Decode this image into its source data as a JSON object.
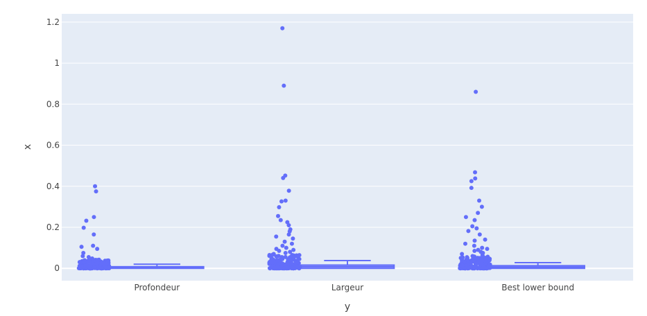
{
  "chart_data": {
    "type": "box",
    "categories": [
      "Profondeur",
      "Largeur",
      "Best lower bound"
    ],
    "xlabel": "y",
    "ylabel": "x",
    "ylim": [
      -0.06,
      1.24
    ],
    "yticks": [
      0,
      0.2,
      0.4,
      0.6,
      0.8,
      1,
      1.2
    ],
    "ytick_labels": [
      "0",
      "0.2",
      "0.4",
      "0.6",
      "0.8",
      "1",
      "1.2"
    ],
    "grid": true,
    "legend": "none",
    "colors": {
      "plot_background": "#e5ecf6",
      "grid": "#ffffff",
      "series": "#636efa",
      "text": "#444444"
    },
    "boxes": [
      {
        "category": "Profondeur",
        "min": 0,
        "q1": 0.0,
        "median": 0.004,
        "q3": 0.008,
        "upper_fence": 0.02,
        "outliers": [
          0.4,
          0.375,
          0.25,
          0.232,
          0.198,
          0.165,
          0.11,
          0.105,
          0.095,
          0.075,
          0.06,
          0.055,
          0.048,
          0.042,
          0.038,
          0.035,
          0.032,
          0.03,
          0.028,
          0.026,
          0.025,
          0.024,
          0.023,
          0.022
        ]
      },
      {
        "category": "Largeur",
        "min": 0,
        "q1": 0.0,
        "median": 0.008,
        "q3": 0.016,
        "upper_fence": 0.038,
        "outliers": [
          1.17,
          0.89,
          0.452,
          0.44,
          0.378,
          0.33,
          0.326,
          0.298,
          0.255,
          0.235,
          0.225,
          0.21,
          0.19,
          0.18,
          0.165,
          0.155,
          0.145,
          0.13,
          0.12,
          0.11,
          0.1,
          0.095,
          0.09,
          0.085,
          0.08,
          0.075,
          0.07,
          0.065,
          0.06,
          0.055,
          0.05,
          0.045,
          0.042
        ]
      },
      {
        "category": "Best lower bound",
        "min": 0,
        "q1": 0.0,
        "median": 0.006,
        "q3": 0.013,
        "upper_fence": 0.028,
        "outliers": [
          0.86,
          0.468,
          0.438,
          0.425,
          0.392,
          0.33,
          0.3,
          0.27,
          0.25,
          0.235,
          0.205,
          0.195,
          0.182,
          0.165,
          0.14,
          0.135,
          0.12,
          0.11,
          0.1,
          0.095,
          0.09,
          0.085,
          0.08,
          0.075,
          0.07,
          0.065,
          0.06,
          0.055,
          0.05,
          0.045,
          0.04,
          0.035,
          0.032
        ]
      }
    ]
  }
}
